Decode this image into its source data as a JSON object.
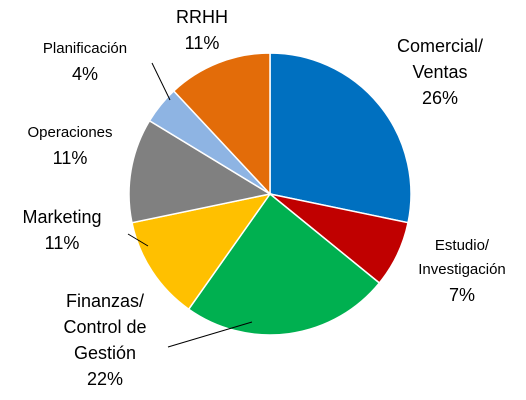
{
  "chart_data": {
    "type": "pie",
    "categories": [
      "Comercial/\nVentas",
      "Estudio/\nInvestigación",
      "Finanzas/\nControl de\nGestión",
      "Marketing",
      "Operaciones",
      "Planificación",
      "RRHH"
    ],
    "values": [
      26,
      7,
      22,
      11,
      11,
      4,
      11
    ],
    "value_labels": [
      "26%",
      "7%",
      "22%",
      "11%",
      "11%",
      "4%",
      "11%"
    ],
    "colors": [
      "#0070c0",
      "#c00000",
      "#00b050",
      "#ffc000",
      "#808080",
      "#8eb4e3",
      "#e36c09"
    ]
  }
}
